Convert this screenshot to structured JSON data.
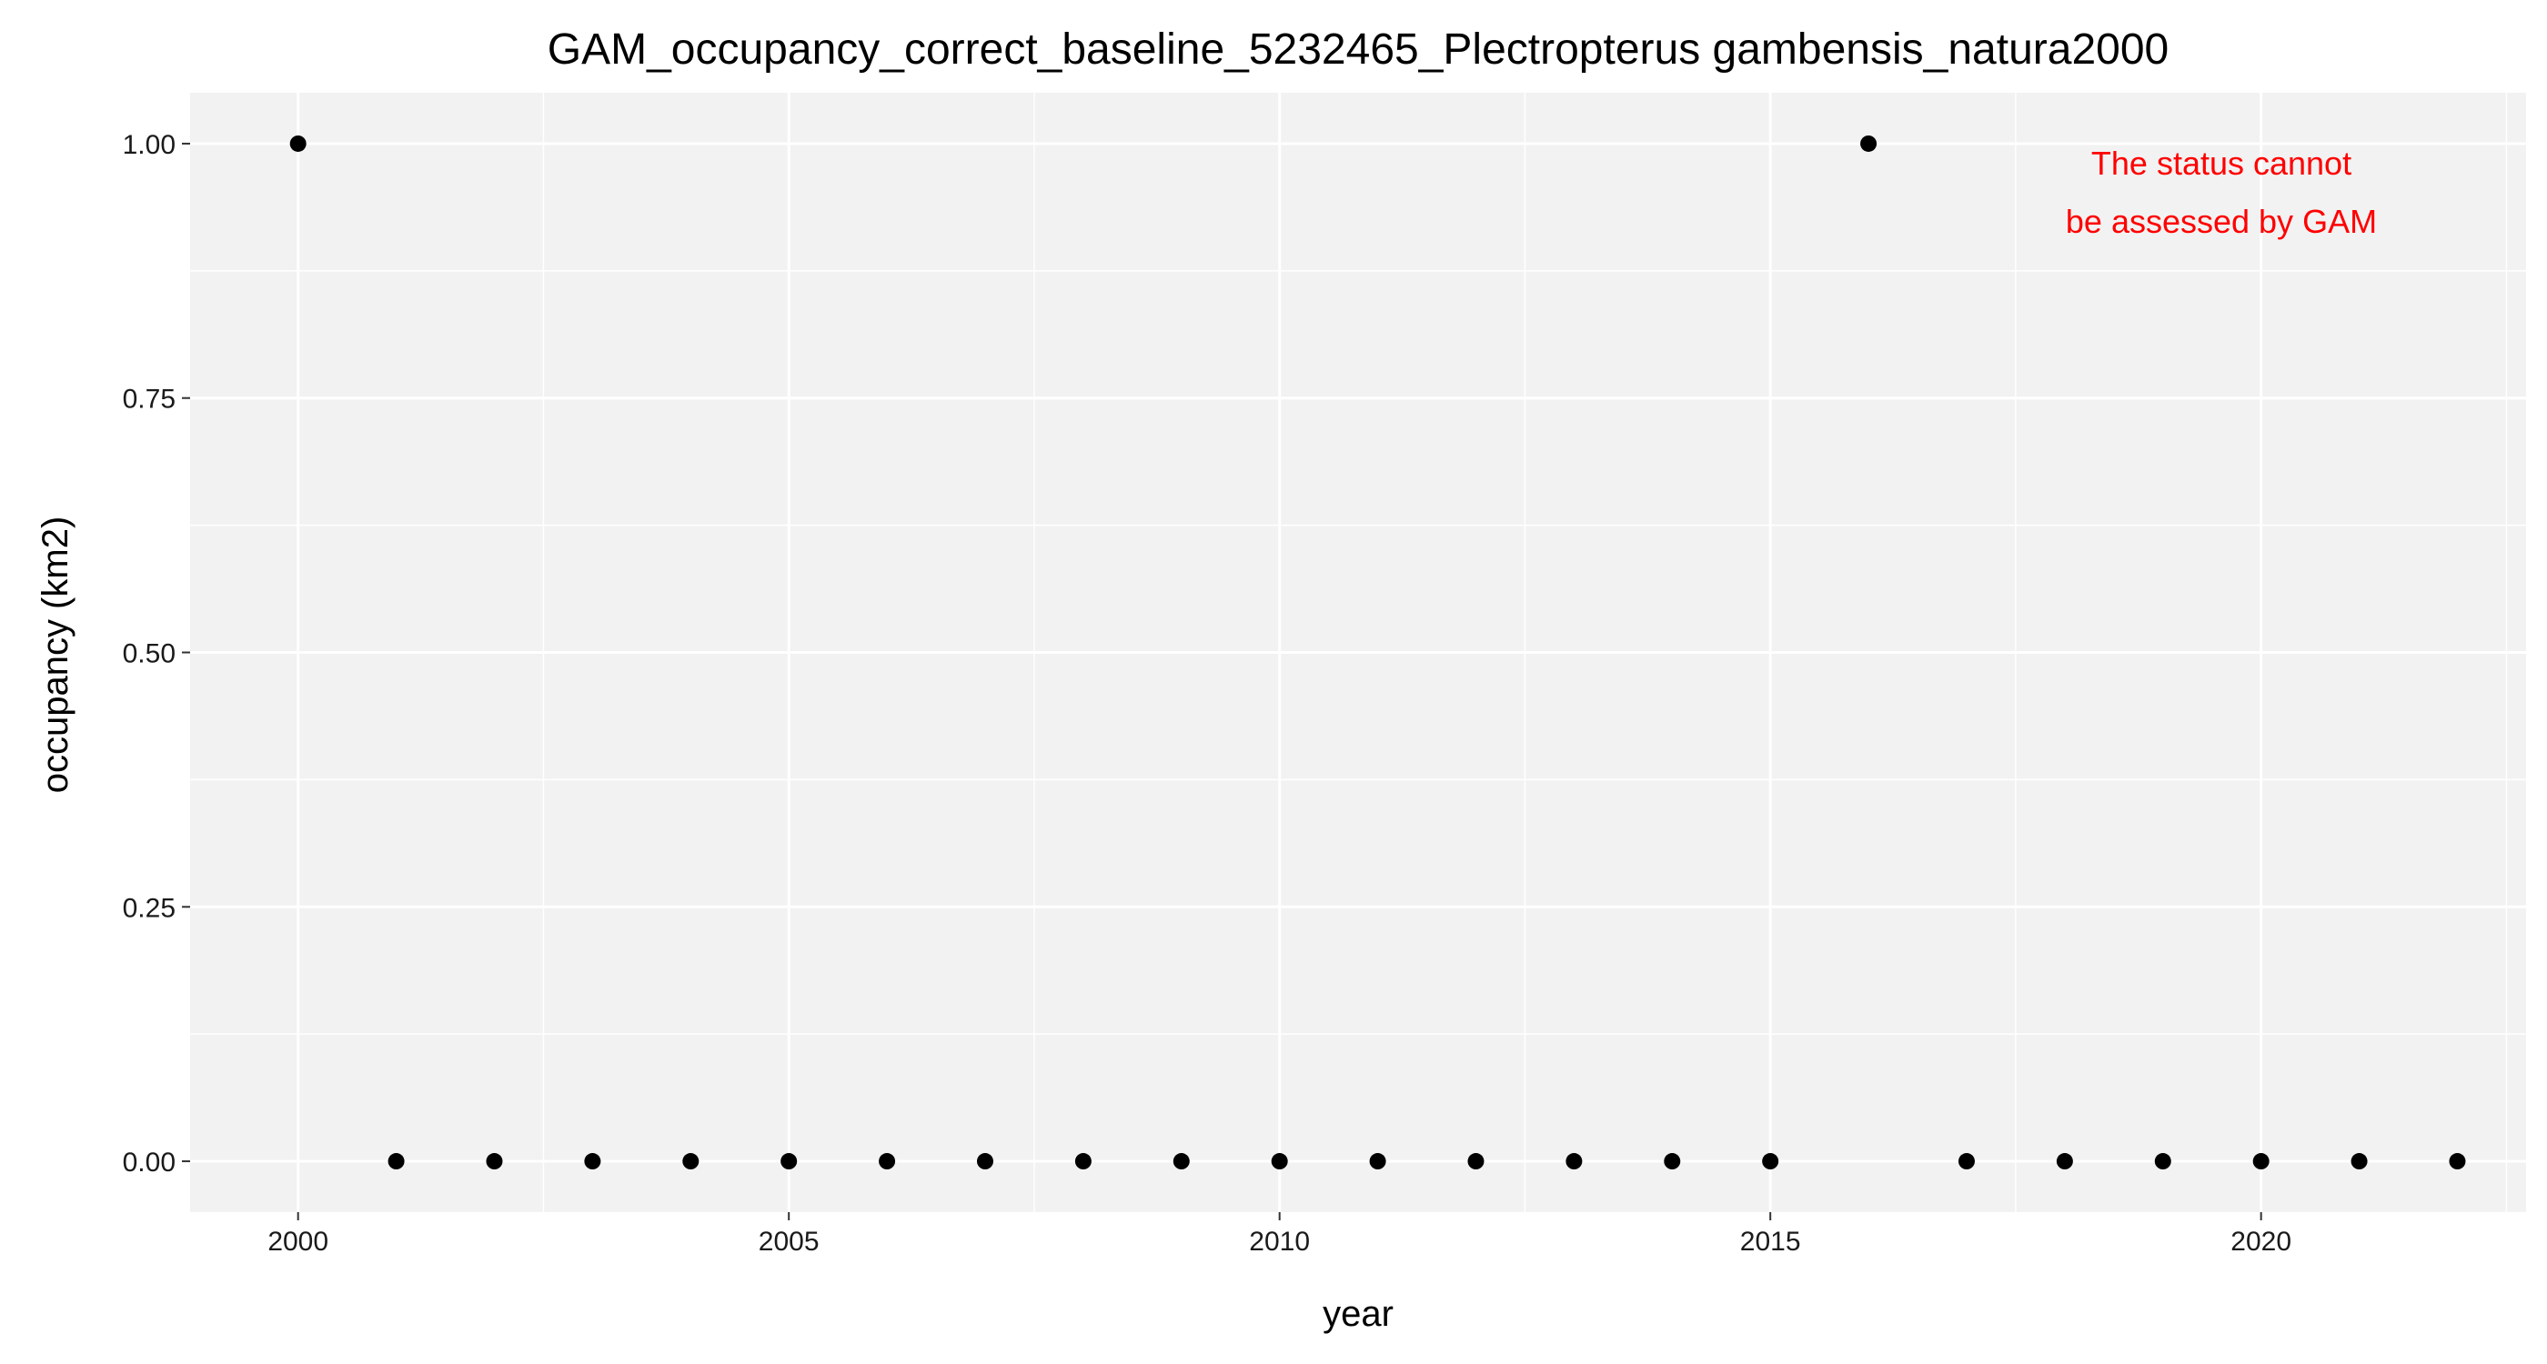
{
  "chart_data": {
    "type": "scatter",
    "title": "GAM_occupancy_correct_baseline_5232465_Plectropterus gambensis_natura2000",
    "xlabel": "year",
    "ylabel": "occupancy (km2)",
    "xlim": [
      1998.9,
      2022.7
    ],
    "ylim": [
      -0.05,
      1.05
    ],
    "x_ticks": [
      2000,
      2005,
      2010,
      2015,
      2020
    ],
    "x_tick_labels": [
      "2000",
      "2005",
      "2010",
      "2015",
      "2020"
    ],
    "y_ticks": [
      0,
      0.25,
      0.5,
      0.75,
      1
    ],
    "y_tick_labels": [
      "0.00",
      "0.25",
      "0.50",
      "0.75",
      "1.00"
    ],
    "grid": true,
    "legend": false,
    "panel_background": "#f2f2f2",
    "grid_color": "#ffffff",
    "point_color": "#000000",
    "points": [
      {
        "x": 2000,
        "y": 1
      },
      {
        "x": 2001,
        "y": 0
      },
      {
        "x": 2002,
        "y": 0
      },
      {
        "x": 2003,
        "y": 0
      },
      {
        "x": 2004,
        "y": 0
      },
      {
        "x": 2005,
        "y": 0
      },
      {
        "x": 2006,
        "y": 0
      },
      {
        "x": 2007,
        "y": 0
      },
      {
        "x": 2008,
        "y": 0
      },
      {
        "x": 2009,
        "y": 0
      },
      {
        "x": 2010,
        "y": 0
      },
      {
        "x": 2011,
        "y": 0
      },
      {
        "x": 2012,
        "y": 0
      },
      {
        "x": 2013,
        "y": 0
      },
      {
        "x": 2014,
        "y": 0
      },
      {
        "x": 2015,
        "y": 0
      },
      {
        "x": 2016,
        "y": 1
      },
      {
        "x": 2017,
        "y": 0
      },
      {
        "x": 2018,
        "y": 0
      },
      {
        "x": 2019,
        "y": 0
      },
      {
        "x": 2020,
        "y": 0
      },
      {
        "x": 2021,
        "y": 0
      },
      {
        "x": 2022,
        "y": 0
      }
    ],
    "annotation": {
      "lines": [
        "The status cannot",
        "be assessed by GAM"
      ],
      "color": "#ff0000"
    }
  }
}
